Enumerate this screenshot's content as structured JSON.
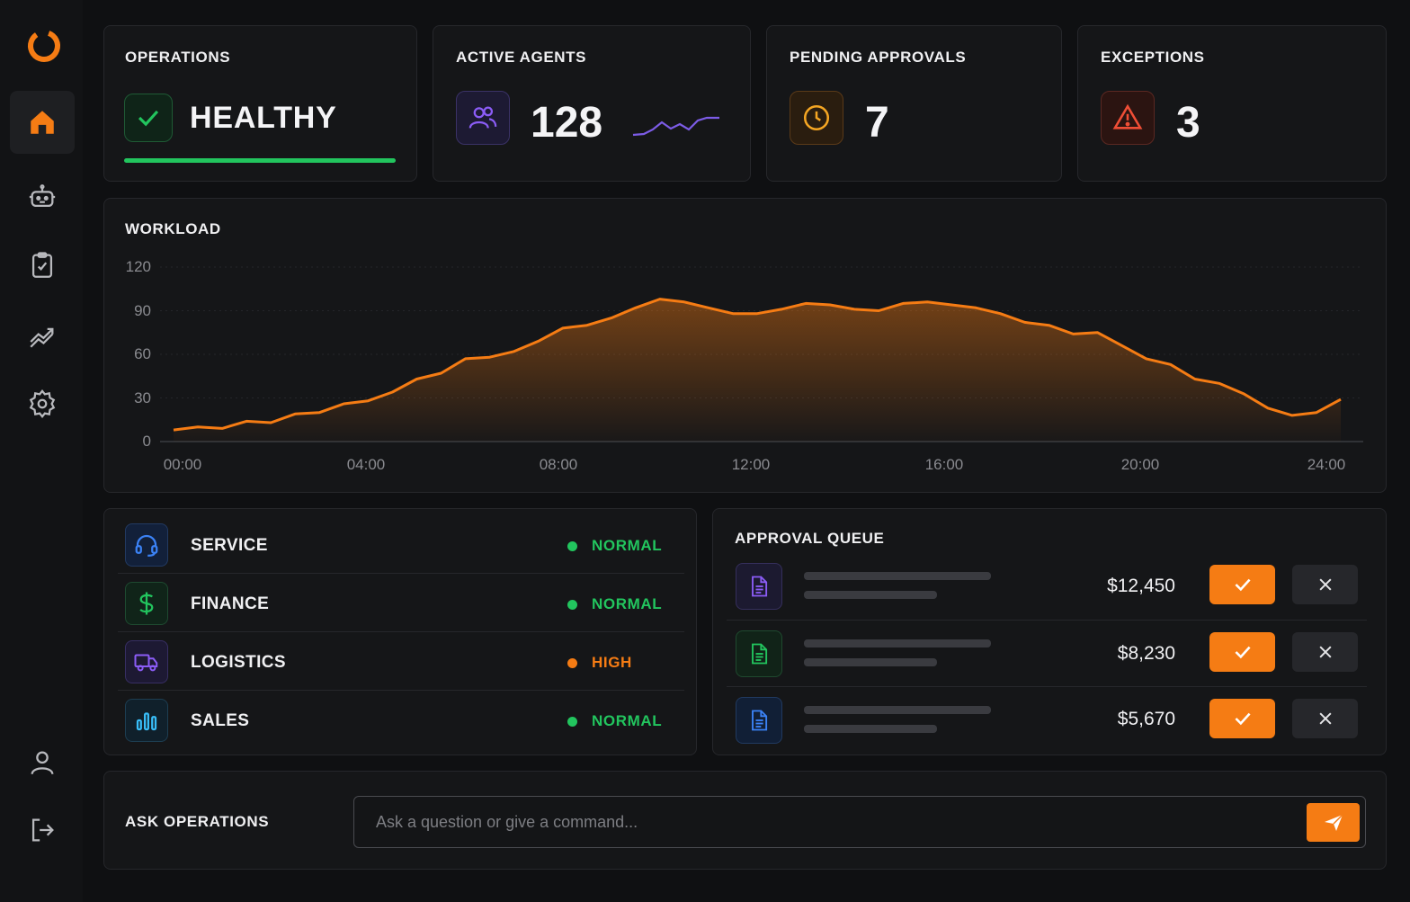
{
  "sidebar": {
    "logo": "ring-logo-icon",
    "nav": [
      "home-icon",
      "robot-icon",
      "clipboard-check-icon",
      "trend-icon",
      "gear-icon"
    ],
    "bottom": [
      "user-icon",
      "logout-icon"
    ],
    "active": "home-icon"
  },
  "kpis": {
    "operations": {
      "title": "OPERATIONS",
      "status": "HEALTHY",
      "icon": "check-icon",
      "progress": 1.0
    },
    "agents": {
      "title": "ACTIVE AGENTS",
      "value": "128",
      "icon": "users-icon"
    },
    "approvals": {
      "title": "PENDING APPROVALS",
      "value": "7",
      "icon": "clock-icon"
    },
    "exceptions": {
      "title": "EXCEPTIONS",
      "value": "3",
      "icon": "warning-icon"
    }
  },
  "workload": {
    "title": "WORKLOAD",
    "chart_data": {
      "type": "area",
      "title": "WORKLOAD",
      "xlabel": "",
      "ylabel": "",
      "ylim": [
        0,
        120
      ],
      "yticks": [
        "120",
        "90",
        "60",
        "30",
        "0"
      ],
      "xticks": [
        "00:00",
        "04:00",
        "08:00",
        "12:00",
        "16:00",
        "20:00",
        "24:00"
      ],
      "x_hours": [
        0.0,
        0.5,
        1.0,
        1.5,
        2.0,
        2.5,
        3.0,
        3.5,
        4.0,
        4.5,
        5.0,
        5.5,
        6.0,
        6.5,
        7.0,
        7.5,
        8.0,
        8.5,
        9.0,
        9.5,
        10.0,
        10.5,
        11.0,
        11.5,
        12.0,
        12.5,
        13.0,
        13.5,
        14.0,
        14.5,
        15.0,
        15.5,
        16.0,
        16.5,
        17.0,
        17.5,
        18.0,
        18.5,
        19.0,
        19.5,
        20.0,
        20.5,
        21.0,
        21.5,
        22.0,
        22.5,
        23.0,
        23.5,
        24.0
      ],
      "values": [
        8,
        10,
        9,
        14,
        13,
        19,
        20,
        26,
        28,
        34,
        43,
        47,
        57,
        58,
        62,
        69,
        78,
        80,
        85,
        92,
        98,
        96,
        92,
        88,
        88,
        91,
        95,
        94,
        91,
        90,
        95,
        96,
        94,
        92,
        88,
        82,
        80,
        74,
        75,
        66,
        57,
        53,
        43,
        40,
        33,
        23,
        18,
        20,
        29
      ],
      "series": [
        {
          "values_ref": "values",
          "color": "#f57c14"
        }
      ],
      "grid": true
    }
  },
  "departments": [
    {
      "label": "SERVICE",
      "status": "NORMAL",
      "icon": "headset-icon",
      "color": "#3b82f6",
      "status_color": "#22c55e"
    },
    {
      "label": "FINANCE",
      "status": "NORMAL",
      "icon": "dollar-icon",
      "color": "#22c55e",
      "status_color": "#22c55e"
    },
    {
      "label": "LOGISTICS",
      "status": "HIGH",
      "icon": "truck-icon",
      "color": "#8b5cf6",
      "status_color": "#f57c14"
    },
    {
      "label": "SALES",
      "status": "NORMAL",
      "icon": "bar-chart-icon",
      "color": "#38bdf8",
      "status_color": "#22c55e"
    }
  ],
  "approval_queue": {
    "title": "APPROVAL QUEUE",
    "items": [
      {
        "amount": "$12,450",
        "icon": "document-icon",
        "color": "#8b5cf6"
      },
      {
        "amount": "$8,230",
        "icon": "document-icon",
        "color": "#22c55e"
      },
      {
        "amount": "$5,670",
        "icon": "document-icon",
        "color": "#3b82f6"
      }
    ]
  },
  "ask": {
    "title": "ASK OPERATIONS",
    "placeholder": "Ask a question or give a command...",
    "send_icon": "send-icon"
  },
  "colors": {
    "accent": "#f57c14",
    "ok": "#22c55e",
    "danger": "#ef4444",
    "purple": "#8b5cf6"
  }
}
